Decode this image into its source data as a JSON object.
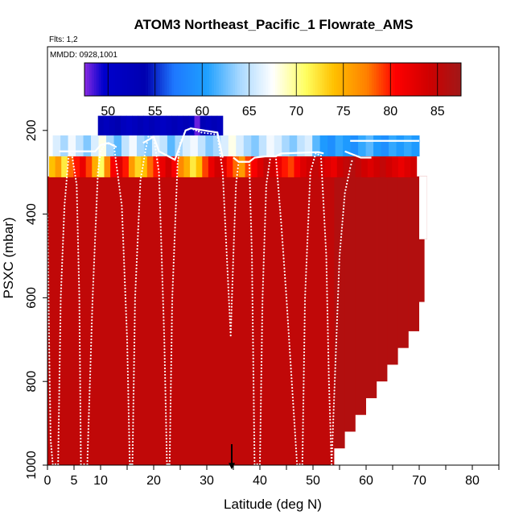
{
  "chart_data": {
    "type": "heatmap",
    "title": "ATOM3 Northeast_Pacific_1 Flowrate_AMS",
    "subtitle_flights": "Flts: 1,2",
    "subtitle_dates": "MMDD: 0928,1001",
    "xlabel": "Latitude (deg N)",
    "ylabel": "PSXC (mbar)",
    "xlim": [
      0,
      85
    ],
    "ylim": [
      1000,
      0
    ],
    "x_ticks": [
      0,
      5,
      10,
      20,
      30,
      40,
      50,
      60,
      70,
      80
    ],
    "x_ticks_minor": [
      15,
      25,
      35,
      45,
      55,
      65,
      75,
      85
    ],
    "y_ticks": [
      200,
      400,
      600,
      800,
      1000
    ],
    "colorbar": {
      "min": 47.5,
      "max": 87.5,
      "ticks": [
        50,
        55,
        60,
        65,
        70,
        75,
        80,
        85
      ],
      "stops": [
        {
          "v": 47.5,
          "c": "#8a2be2"
        },
        {
          "v": 49.5,
          "c": "#0000cd"
        },
        {
          "v": 54,
          "c": "#0000b0"
        },
        {
          "v": 57,
          "c": "#1e78ff"
        },
        {
          "v": 60.5,
          "c": "#1ea0ff"
        },
        {
          "v": 64,
          "c": "#a8d8ff"
        },
        {
          "v": 67.5,
          "c": "#ffffff"
        },
        {
          "v": 71,
          "c": "#ffff60"
        },
        {
          "v": 74,
          "c": "#ffc000"
        },
        {
          "v": 77.5,
          "c": "#ff8000"
        },
        {
          "v": 80.5,
          "c": "#ff0000"
        },
        {
          "v": 84,
          "c": "#d00000"
        },
        {
          "v": 87.5,
          "c": "#a01818"
        }
      ]
    },
    "fields": {
      "background_value": 85.2,
      "lower_edge": [
        {
          "x": [
            0,
            54
          ],
          "p": 1000
        },
        {
          "x": [
            54,
            56
          ],
          "p": 960
        },
        {
          "x": [
            56,
            58
          ],
          "p": 920
        },
        {
          "x": [
            58,
            60
          ],
          "p": 880
        },
        {
          "x": [
            60,
            62
          ],
          "p": 840
        },
        {
          "x": [
            62,
            64
          ],
          "p": 800
        },
        {
          "x": [
            64,
            66
          ],
          "p": 760
        },
        {
          "x": [
            66,
            68
          ],
          "p": 720
        },
        {
          "x": [
            68,
            70
          ],
          "p": 680
        },
        {
          "x": [
            70,
            71
          ],
          "p": 610
        },
        {
          "x": [
            71,
            71.5
          ],
          "p": 460
        }
      ],
      "upper_band_values": [
        74,
        76,
        72,
        78,
        80,
        82,
        79,
        75,
        71,
        77,
        81,
        83,
        80,
        76,
        73,
        74,
        78,
        80,
        82,
        84,
        81,
        77,
        75,
        72,
        74,
        79,
        82,
        84,
        83,
        80,
        78,
        76,
        79,
        81,
        83,
        85,
        84,
        82,
        80,
        79,
        81,
        83,
        84,
        85,
        84,
        83,
        82,
        84,
        85,
        86,
        85,
        84,
        83,
        84,
        85,
        84,
        83,
        82,
        83,
        84
      ],
      "light_band_values": [
        66,
        64,
        67,
        65,
        63,
        66,
        68,
        64,
        62,
        65,
        67,
        64,
        63,
        66,
        65,
        62,
        64,
        66,
        67,
        65,
        63,
        64,
        66,
        68,
        66,
        64,
        63,
        65,
        67,
        66,
        64,
        63,
        65,
        66,
        62,
        60,
        59,
        61,
        60,
        59,
        61,
        62,
        60,
        59,
        61,
        60,
        61,
        60
      ],
      "top_block_values": [
        53,
        52,
        53,
        54,
        52,
        51,
        52,
        53,
        52,
        53,
        52,
        51,
        52,
        53,
        52,
        53,
        52,
        48,
        53,
        52,
        53,
        52
      ]
    },
    "flight_track_dots": [
      [
        0,
        400
      ],
      [
        0.3,
        700
      ],
      [
        0.6,
        940
      ],
      [
        1,
        998
      ],
      [
        2,
        998
      ],
      [
        2.5,
        600
      ],
      [
        3.2,
        380
      ],
      [
        4,
        260
      ],
      [
        4.5,
        250
      ],
      [
        5.5,
        330
      ],
      [
        6,
        600
      ],
      [
        6.3,
        998
      ],
      [
        7.5,
        998
      ],
      [
        8.5,
        600
      ],
      [
        9.5,
        300
      ],
      [
        10,
        250
      ],
      [
        10.5,
        240
      ],
      [
        11,
        230
      ],
      [
        12.5,
        235
      ],
      [
        14,
        380
      ],
      [
        15,
        700
      ],
      [
        15.5,
        998
      ],
      [
        16,
        998
      ],
      [
        16.5,
        600
      ],
      [
        17.5,
        320
      ],
      [
        18.5,
        245
      ],
      [
        19,
        215
      ],
      [
        20,
        215
      ],
      [
        21,
        300
      ],
      [
        22,
        700
      ],
      [
        22.5,
        998
      ],
      [
        23,
        998
      ],
      [
        23.5,
        600
      ],
      [
        24.5,
        280
      ],
      [
        25,
        230
      ],
      [
        26,
        200
      ],
      [
        27,
        195
      ],
      [
        29,
        205
      ],
      [
        32,
        210
      ],
      [
        33,
        300
      ],
      [
        34,
        560
      ],
      [
        34.5,
        690
      ],
      [
        35,
        500
      ],
      [
        35.5,
        330
      ],
      [
        36,
        275
      ],
      [
        38,
        275
      ],
      [
        38.5,
        500
      ],
      [
        39,
        998
      ],
      [
        40,
        998
      ],
      [
        40.5,
        600
      ],
      [
        41.2,
        330
      ],
      [
        42,
        262
      ],
      [
        43,
        262
      ],
      [
        44,
        420
      ],
      [
        45,
        600
      ],
      [
        46,
        800
      ],
      [
        47,
        998
      ],
      [
        48,
        998
      ],
      [
        48.5,
        600
      ],
      [
        49.5,
        300
      ],
      [
        50.5,
        255
      ],
      [
        51.5,
        260
      ],
      [
        52.5,
        500
      ],
      [
        53,
        800
      ],
      [
        53.5,
        998
      ],
      [
        55,
        500
      ],
      [
        56,
        350
      ],
      [
        57,
        290
      ],
      [
        57.5,
        265
      ]
    ],
    "flight_track_white": [
      [
        [
          2.2,
          250
        ],
        [
          6,
          250
        ],
        [
          9,
          250
        ],
        [
          10,
          235
        ],
        [
          11.5,
          230
        ],
        [
          13,
          240
        ]
      ],
      [
        [
          18,
          230
        ],
        [
          20,
          215
        ],
        [
          21,
          250
        ],
        [
          24,
          270
        ],
        [
          26,
          200
        ],
        [
          27,
          195
        ],
        [
          32,
          205
        ],
        [
          33,
          265
        ]
      ],
      [
        [
          35,
          265
        ],
        [
          36,
          275
        ],
        [
          38,
          275
        ],
        [
          39,
          265
        ],
        [
          41,
          262
        ],
        [
          43,
          262
        ],
        [
          44,
          255
        ],
        [
          51,
          252
        ],
        [
          52,
          255
        ]
      ],
      [
        [
          56,
          250
        ],
        [
          59,
          265
        ],
        [
          61,
          265
        ]
      ],
      [
        [
          57,
          225
        ],
        [
          70,
          225
        ]
      ]
    ],
    "annotation_arrow": {
      "x": 34.7,
      "p_from": 950,
      "p_to": 1010
    }
  }
}
